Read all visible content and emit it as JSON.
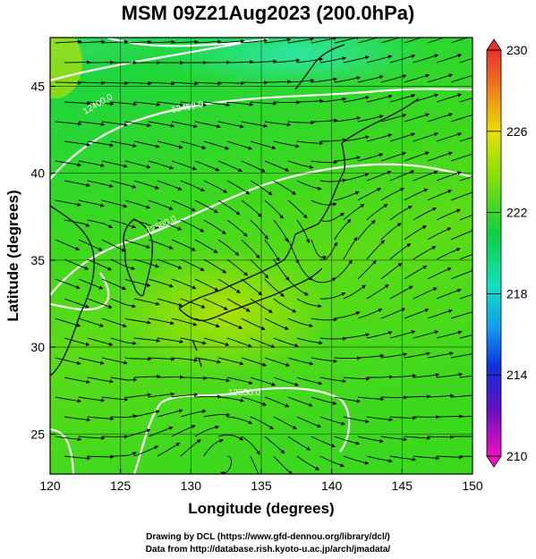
{
  "title": "MSM 09Z21Aug2023 (200.0hPa)",
  "map": {
    "lon_range": [
      120,
      150
    ],
    "lat_range": [
      22.7,
      47.8
    ],
    "xlabel": "Longitude (degrees)",
    "ylabel": "Latitude  (degrees)",
    "x_ticks": [
      "120",
      "125",
      "130",
      "135",
      "140",
      "145",
      "150"
    ],
    "y_ticks": [
      "25",
      "30",
      "35",
      "40",
      "45"
    ],
    "grid": true,
    "contour_labels": [
      "12400.0",
      "12450.0",
      "12500.0",
      "12550.0"
    ]
  },
  "colorbar": {
    "min": 210,
    "max": 230,
    "ticks": [
      "230",
      "226",
      "222",
      "218",
      "214",
      "210"
    ]
  },
  "credits": {
    "line1": "Drawing by DCL (https://www.gfd-dennou.org/library/dcl/)",
    "line2": "Data from http://database.rish.kyoto-u.ac.jp/arch/jmadata/"
  }
}
